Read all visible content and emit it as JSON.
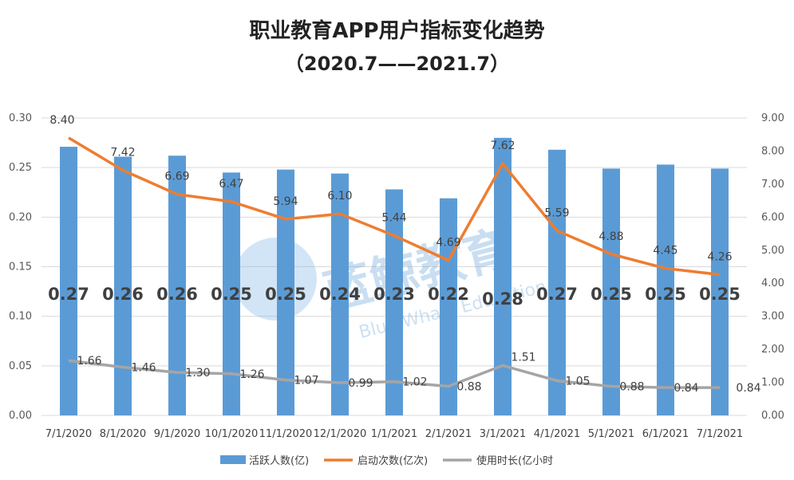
{
  "chart_data": {
    "type": "bar",
    "title": "职业教育APP用户指标变化趋势",
    "subtitle": "（2020.7——2021.7）",
    "categories": [
      "7/1/2020",
      "8/1/2020",
      "9/1/2020",
      "10/1/2020",
      "11/1/2020",
      "12/1/2020",
      "1/1/2021",
      "2/1/2021",
      "3/1/2021",
      "4/1/2021",
      "5/1/2021",
      "6/1/2021",
      "7/1/2021"
    ],
    "y_left": {
      "ylim": [
        0,
        0.3
      ],
      "ticks": [
        "0.00",
        "0.05",
        "0.10",
        "0.15",
        "0.20",
        "0.25",
        "0.30"
      ]
    },
    "y_right": {
      "ylim": [
        0,
        9
      ],
      "ticks": [
        "0.00",
        "1.00",
        "2.00",
        "3.00",
        "4.00",
        "5.00",
        "6.00",
        "7.00",
        "8.00",
        "9.00"
      ]
    },
    "grid": true,
    "legend_position": "bottom",
    "series": [
      {
        "name": "活跃人数(亿)",
        "type": "bar",
        "axis": "left",
        "color": "#5b9bd5",
        "values": [
          0.271,
          0.261,
          0.262,
          0.245,
          0.248,
          0.244,
          0.228,
          0.219,
          0.28,
          0.268,
          0.249,
          0.253,
          0.249
        ],
        "labels": [
          "0.27",
          "0.26",
          "0.26",
          "0.25",
          "0.25",
          "0.24",
          "0.23",
          "0.22",
          "0.28",
          "0.27",
          "0.25",
          "0.25",
          "0.25"
        ]
      },
      {
        "name": "启动次数(亿次)",
        "type": "line",
        "axis": "right",
        "color": "#ed7d31",
        "values": [
          8.4,
          7.42,
          6.69,
          6.47,
          5.94,
          6.1,
          5.44,
          4.69,
          7.62,
          5.59,
          4.88,
          4.45,
          4.26
        ],
        "labels": [
          "8.40",
          "7.42",
          "6.69",
          "6.47",
          "5.94",
          "6.10",
          "5.44",
          "4.69",
          "7.62",
          "5.59",
          "4.88",
          "4.45",
          "4.26"
        ]
      },
      {
        "name": "使用时长(亿小时",
        "type": "line",
        "axis": "right",
        "color": "#a5a5a5",
        "values": [
          1.66,
          1.46,
          1.3,
          1.26,
          1.07,
          0.99,
          1.02,
          0.88,
          1.51,
          1.05,
          0.88,
          0.84,
          0.84
        ],
        "labels": [
          "1.66",
          "1.46",
          "1.30",
          "1.26",
          "1.07",
          "0.99",
          "1.02",
          "0.88",
          "1.51",
          "1.05",
          "0.88",
          "0.84",
          "0.84"
        ]
      }
    ],
    "watermark": {
      "text": "蓝鲸教育",
      "subtext": "Blue Whale Education"
    }
  }
}
